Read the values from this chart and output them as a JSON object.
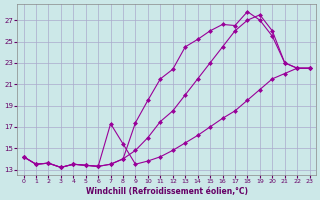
{
  "xlabel": "Windchill (Refroidissement éolien,°C)",
  "bg_color": "#cce8e8",
  "grid_color": "#aaaacc",
  "line_color": "#990099",
  "marker": "D",
  "markersize": 2.0,
  "linewidth": 0.8,
  "xlim": [
    -0.5,
    23.5
  ],
  "ylim": [
    12.5,
    28.5
  ],
  "xticks": [
    0,
    1,
    2,
    3,
    4,
    5,
    6,
    7,
    8,
    9,
    10,
    11,
    12,
    13,
    14,
    15,
    16,
    17,
    18,
    19,
    20,
    21,
    22,
    23
  ],
  "yticks": [
    13,
    15,
    17,
    19,
    21,
    23,
    25,
    27
  ],
  "series1_x": [
    0,
    1,
    2,
    3,
    4,
    5,
    6,
    7,
    8,
    9,
    10,
    11,
    12,
    13,
    14,
    15,
    16,
    17,
    18,
    19,
    20,
    21,
    22,
    23
  ],
  "series1_y": [
    14.2,
    13.5,
    13.6,
    13.2,
    13.5,
    13.4,
    13.3,
    13.5,
    14.0,
    14.8,
    16.0,
    17.5,
    18.5,
    20.0,
    21.5,
    23.0,
    24.5,
    26.0,
    27.0,
    27.5,
    26.0,
    23.0,
    22.5,
    22.5
  ],
  "series2_x": [
    0,
    1,
    2,
    3,
    4,
    5,
    6,
    7,
    8,
    9,
    10,
    11,
    12,
    13,
    14,
    15,
    16,
    17,
    18,
    19,
    20,
    21,
    22,
    23
  ],
  "series2_y": [
    14.2,
    13.5,
    13.6,
    13.2,
    13.5,
    13.4,
    13.3,
    13.5,
    14.0,
    17.4,
    19.5,
    21.5,
    22.4,
    24.5,
    25.2,
    26.0,
    26.6,
    26.5,
    27.8,
    27.0,
    25.5,
    23.0,
    22.5,
    22.5
  ],
  "series3_x": [
    0,
    1,
    2,
    3,
    4,
    5,
    6,
    7,
    8,
    9,
    10,
    11,
    12,
    13,
    14,
    15,
    16,
    17,
    18,
    19,
    20,
    21,
    22,
    23
  ],
  "series3_y": [
    14.2,
    13.5,
    13.6,
    13.2,
    13.5,
    13.4,
    13.3,
    17.3,
    15.4,
    13.5,
    13.8,
    14.2,
    14.8,
    15.5,
    16.2,
    17.0,
    17.8,
    18.5,
    19.5,
    20.5,
    21.5,
    22.0,
    22.5,
    22.5
  ]
}
